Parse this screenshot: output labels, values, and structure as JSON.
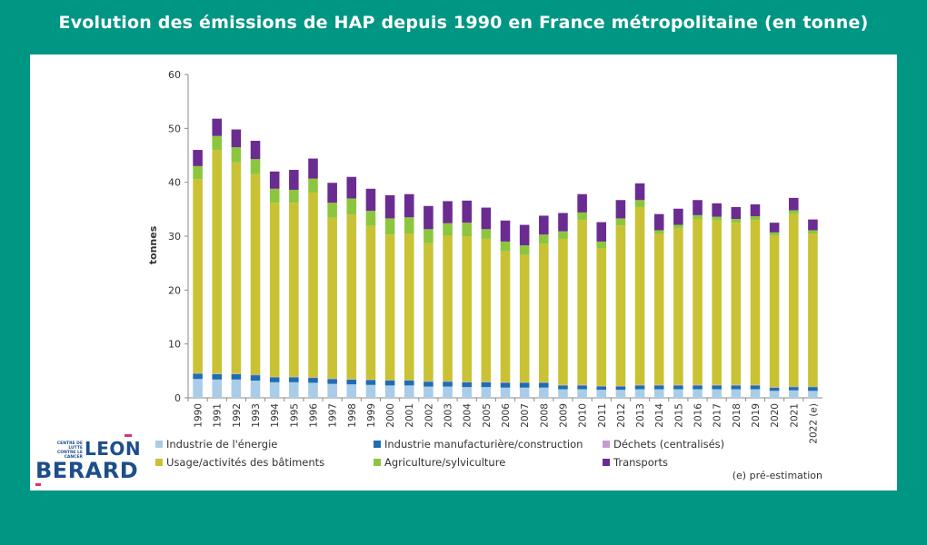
{
  "header": {
    "title": "Evolution des émissions de HAP depuis 1990 en France métropolitaine (en tonne)"
  },
  "logo": {
    "small_text": "CENTRE DE LUTTE CONTRE LE CANCER",
    "line1": "LEON",
    "line2": "BERARD"
  },
  "colors": {
    "background": "#009684",
    "energie": "#a9cde8",
    "industrie": "#1f6db0",
    "dechets": "#c89ad4",
    "batiments": "#c9c234",
    "agriculture": "#8cc63f",
    "transports": "#6b2c91"
  },
  "chart_data": {
    "type": "bar",
    "stacked": true,
    "title": "",
    "xlabel": "",
    "ylabel": "tonnes",
    "ylim": [
      0,
      60
    ],
    "yticks": [
      0,
      10,
      20,
      30,
      40,
      50,
      60
    ],
    "categories": [
      "1990",
      "1991",
      "1992",
      "1993",
      "1994",
      "1995",
      "1996",
      "1997",
      "1998",
      "1999",
      "2000",
      "2001",
      "2002",
      "2003",
      "2004",
      "2005",
      "2006",
      "2007",
      "2008",
      "2009",
      "2010",
      "2011",
      "2012",
      "2013",
      "2014",
      "2015",
      "2016",
      "2017",
      "2018",
      "2019",
      "2020",
      "2021",
      "2022 (e)"
    ],
    "series": [
      {
        "name": "Industrie de l'énergie",
        "key": "energie",
        "values": [
          3.5,
          3.4,
          3.4,
          3.2,
          2.9,
          2.9,
          2.8,
          2.6,
          2.5,
          2.4,
          2.3,
          2.3,
          2.1,
          2.1,
          2.0,
          2.0,
          1.9,
          1.9,
          1.9,
          1.6,
          1.6,
          1.5,
          1.5,
          1.6,
          1.6,
          1.6,
          1.6,
          1.6,
          1.6,
          1.6,
          1.3,
          1.4,
          1.3
        ]
      },
      {
        "name": "Industrie manufacturière/construction",
        "key": "industrie",
        "values": [
          1.0,
          1.0,
          1.0,
          1.0,
          0.9,
          0.9,
          0.9,
          0.9,
          0.9,
          0.9,
          0.9,
          0.9,
          0.9,
          0.9,
          0.9,
          0.9,
          0.9,
          0.9,
          0.9,
          0.7,
          0.7,
          0.6,
          0.6,
          0.7,
          0.7,
          0.7,
          0.7,
          0.7,
          0.7,
          0.7,
          0.6,
          0.6,
          0.7
        ]
      },
      {
        "name": "Déchets (centralisés)",
        "key": "dechets",
        "values": [
          0.1,
          0.1,
          0.1,
          0.1,
          0.1,
          0.1,
          0.1,
          0.1,
          0.1,
          0.1,
          0.1,
          0.1,
          0.1,
          0.1,
          0.1,
          0.1,
          0.1,
          0.1,
          0.1,
          0.1,
          0.1,
          0.1,
          0.1,
          0.1,
          0.1,
          0.1,
          0.1,
          0.1,
          0.1,
          0.1,
          0.1,
          0.1,
          0.1
        ]
      },
      {
        "name": "Usage/activités des bâtiments",
        "key": "batiments",
        "values": [
          36.0,
          41.5,
          39.2,
          37.2,
          32.3,
          32.3,
          34.3,
          29.8,
          30.5,
          28.5,
          27.0,
          27.2,
          25.6,
          27.0,
          27.0,
          26.5,
          24.3,
          23.6,
          25.7,
          27.1,
          30.6,
          25.6,
          29.8,
          33.0,
          28.0,
          29.0,
          30.8,
          30.5,
          30.1,
          30.6,
          28.1,
          32.0,
          28.4
        ]
      },
      {
        "name": "Agriculture/sylviculture",
        "key": "agriculture",
        "values": [
          2.4,
          2.6,
          2.8,
          2.8,
          2.6,
          2.4,
          2.6,
          2.8,
          3.0,
          2.8,
          3.0,
          3.0,
          2.6,
          2.3,
          2.5,
          1.8,
          1.8,
          1.8,
          1.7,
          1.4,
          1.4,
          1.2,
          1.3,
          1.3,
          0.7,
          0.7,
          0.7,
          0.7,
          0.7,
          0.7,
          0.6,
          0.7,
          0.6
        ]
      },
      {
        "name": "Transports",
        "key": "transports",
        "values": [
          3.0,
          3.2,
          3.3,
          3.4,
          3.2,
          3.7,
          3.7,
          3.7,
          4.0,
          4.1,
          4.3,
          4.3,
          4.3,
          4.1,
          4.1,
          4.0,
          3.9,
          3.8,
          3.5,
          3.4,
          3.4,
          3.6,
          3.4,
          3.1,
          3.0,
          3.0,
          2.8,
          2.5,
          2.2,
          2.2,
          1.8,
          2.3,
          2.0
        ]
      }
    ],
    "footnote": "(e) pré-estimation"
  }
}
